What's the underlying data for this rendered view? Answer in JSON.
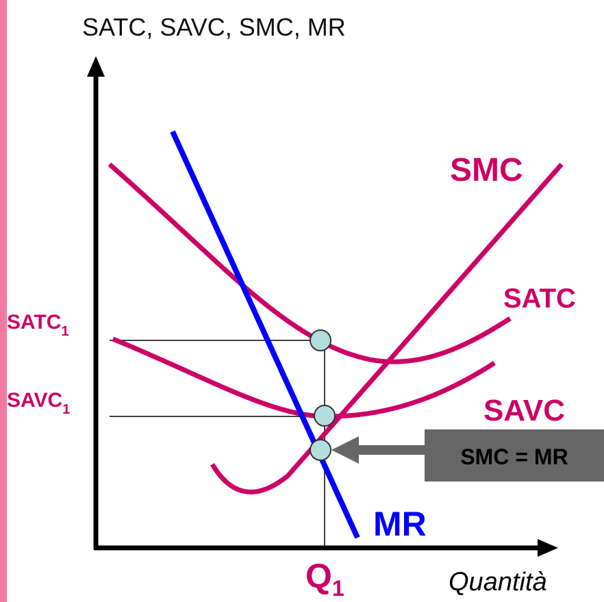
{
  "title": "SATC, SAVC, SMC, MR",
  "curves": {
    "smc": "SMC",
    "satc": "SATC",
    "savc": "SAVC",
    "mr": "MR"
  },
  "levels": {
    "satc": {
      "label": "SATC",
      "sub": "1"
    },
    "savc": {
      "label": "SAVC",
      "sub": "1"
    }
  },
  "quantity": {
    "label": "Q",
    "sub": "1"
  },
  "x_axis_label": "Quantità",
  "callout": "SMC = MR"
}
